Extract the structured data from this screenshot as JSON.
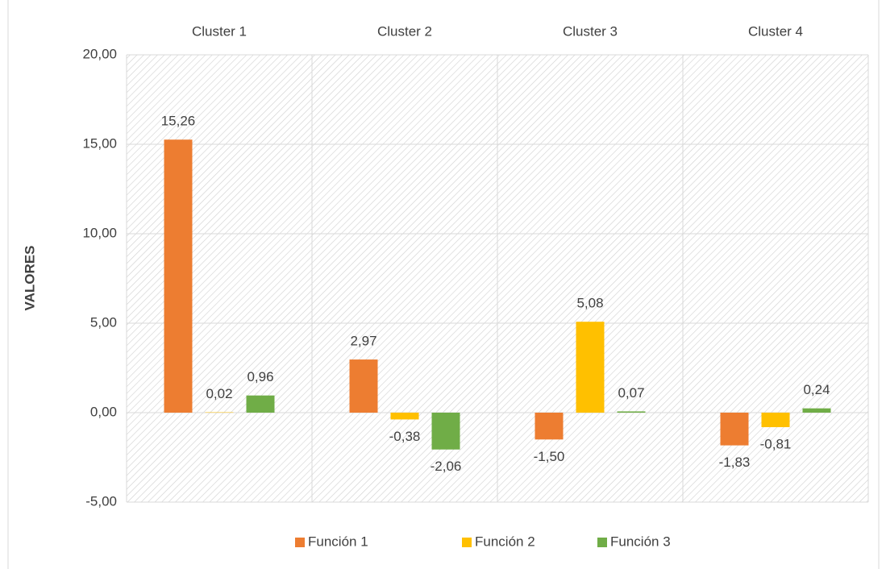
{
  "chart_data": {
    "type": "bar",
    "y_axis_label": "VALORES",
    "categories": [
      "Cluster 1",
      "Cluster 2",
      "Cluster 3",
      "Cluster 4"
    ],
    "series": [
      {
        "name": "Función 1",
        "color": "#ed7d31",
        "values": [
          15.26,
          2.97,
          -1.5,
          -1.83
        ],
        "value_labels": [
          "15,26",
          "2,97",
          "-1,50",
          "-1,83"
        ]
      },
      {
        "name": "Función 2",
        "color": "#ffc000",
        "values": [
          0.02,
          -0.38,
          5.08,
          -0.81
        ],
        "value_labels": [
          "0,02",
          "-0,38",
          "5,08",
          "-0,81"
        ]
      },
      {
        "name": "Función 3",
        "color": "#70ad47",
        "values": [
          0.96,
          -2.06,
          0.07,
          0.24
        ],
        "value_labels": [
          "0,96",
          "-2,06",
          "0,07",
          "0,24"
        ]
      }
    ],
    "ylim": [
      -5,
      20
    ],
    "yticks": [
      {
        "value": -5,
        "label": "-5,00"
      },
      {
        "value": 0,
        "label": "0,00"
      },
      {
        "value": 5,
        "label": "5,00"
      },
      {
        "value": 10,
        "label": "10,00"
      },
      {
        "value": 15,
        "label": "15,00"
      },
      {
        "value": 20,
        "label": "20,00"
      }
    ],
    "grid": true,
    "legend": "bottom"
  }
}
